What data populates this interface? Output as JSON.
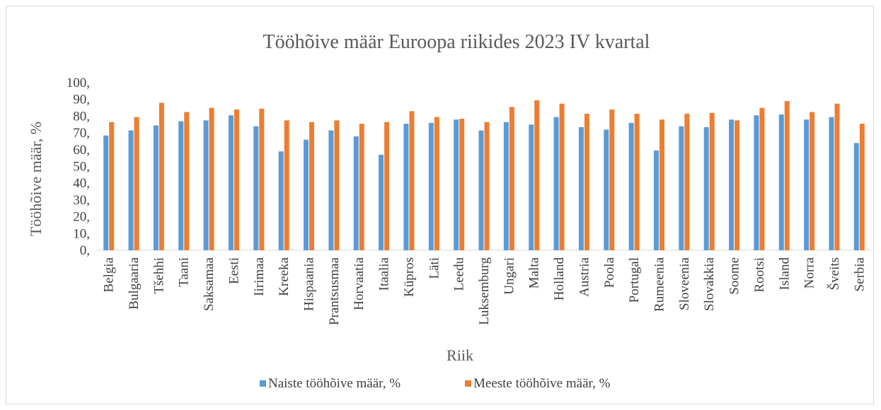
{
  "chart_data": {
    "type": "bar",
    "title": "Tööhõive määr Euroopa riikides 2023 IV kvartal",
    "xlabel": "Riik",
    "ylabel": "Tööhõive määr, %",
    "ylim": [
      0,
      100
    ],
    "yticks": [
      "0,",
      "10,",
      "20,",
      "30,",
      "40,",
      "50,",
      "60,",
      "70,",
      "80,",
      "90,",
      "100,"
    ],
    "grid": false,
    "legend_position": "bottom",
    "categories": [
      "Belgia",
      "Bulgaaria",
      "Tšehhi",
      "Taani",
      "Saksamaa",
      "Eesti",
      "Iirimaa",
      "Kreeka",
      "Hispaania",
      "Prantsusmaa",
      "Horvaatia",
      "Itaalia",
      "Küpros",
      "Läti",
      "Leedu",
      "Luksemburg",
      "Ungari",
      "Malta",
      "Holland",
      "Austria",
      "Poola",
      "Portugal",
      "Rumeenia",
      "Sloveenia",
      "Slovakkia",
      "Soome",
      "Rootsi",
      "Island",
      "Norra",
      "Šveits",
      "Serbia"
    ],
    "series": [
      {
        "name": "Naiste tööhõive määr, %",
        "color": "#5b9bd5",
        "values": [
          68.5,
          71.5,
          74.5,
          77,
          77.5,
          80.5,
          74,
          59,
          66,
          71.5,
          68,
          57,
          75.5,
          76,
          78,
          71.5,
          76.5,
          75,
          79.5,
          73.5,
          72,
          76,
          59.5,
          74,
          73.5,
          78,
          80.5,
          81,
          78,
          79.5,
          64
        ]
      },
      {
        "name": "Meeste tööhõive määr, %",
        "color": "#ed7d31",
        "values": [
          76.5,
          79.5,
          88,
          82.5,
          85,
          84,
          84.5,
          77.5,
          76.5,
          77.5,
          75.5,
          76.5,
          83,
          79.5,
          78.5,
          76.5,
          85.5,
          89.5,
          87.5,
          81.5,
          84,
          81.5,
          78,
          81.5,
          82,
          77.5,
          85,
          89,
          82.5,
          87.5,
          75.5
        ]
      }
    ]
  }
}
